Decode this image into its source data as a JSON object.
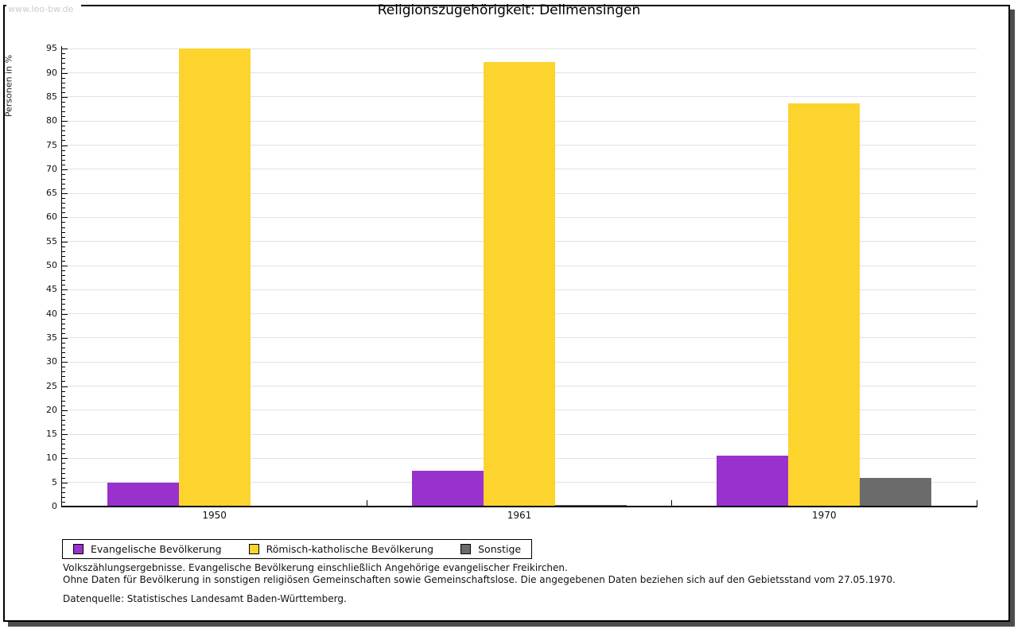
{
  "page": {
    "watermark": "www.leo-bw.de"
  },
  "chart_data": {
    "type": "bar",
    "title": "Religionszugehörigkeit: Dellmensingen",
    "ylabel": "Personen in %",
    "xlabel": "",
    "ylim": [
      0,
      95
    ],
    "yticks": [
      0,
      5,
      10,
      15,
      20,
      25,
      30,
      35,
      40,
      45,
      50,
      55,
      60,
      65,
      70,
      75,
      80,
      85,
      90,
      95
    ],
    "ytick_minor_step": 1,
    "grid": true,
    "legend_position": "bottom-left",
    "categories": [
      "1950",
      "1961",
      "1970"
    ],
    "series": [
      {
        "name": "Evangelische Bevölkerung",
        "color": "#9932cc",
        "values": [
          4.9,
          7.5,
          10.5
        ]
      },
      {
        "name": "Römisch-katholische Bevölkerung",
        "color": "#fdd32e",
        "values": [
          95.0,
          92.3,
          83.7
        ]
      },
      {
        "name": "Sonstige",
        "color": "#6b6b6b",
        "values": [
          0.2,
          0.4,
          6.0
        ]
      }
    ]
  },
  "footer": {
    "line1": "Volkszählungsergebnisse. Evangelische Bevölkerung einschließlich Angehörige evangelischer Freikirchen.",
    "line2": "Ohne Daten für Bevölkerung in sonstigen religiösen Gemeinschaften sowie Gemeinschaftslose. Die angegebenen Daten beziehen sich auf den Gebietsstand vom 27.05.1970.",
    "source": "Datenquelle: Statistisches Landesamt Baden-Württemberg."
  },
  "colors": {
    "gridline": "#e2e2e2",
    "axis": "#000000",
    "frame_shadow": "#4d4d4d",
    "watermark": "#cccccc",
    "background": "#ffffff"
  }
}
